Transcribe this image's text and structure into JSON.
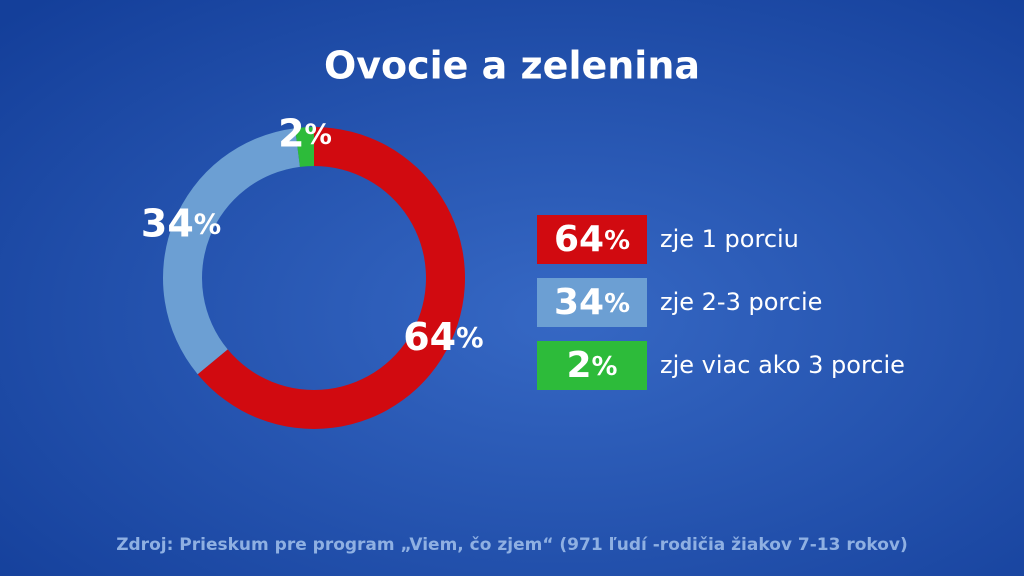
{
  "chart_data": {
    "type": "pie",
    "title": "Ovocie a zelenina",
    "categories": [
      "zje 1 porciu",
      "zje 2-3 porcie",
      "zje viac ako 3 porcie"
    ],
    "values": [
      64,
      34,
      2
    ],
    "value_labels": [
      "64%",
      "34%",
      "2%"
    ],
    "colors": [
      "#d10a10",
      "#6c9fd3",
      "#2dbb3a"
    ],
    "donut": true,
    "source": "Zdroj: Prieskum pre program „Viem, čo zjem“ (971 ľudí -rodičia žiakov 7-13 rokov)"
  }
}
